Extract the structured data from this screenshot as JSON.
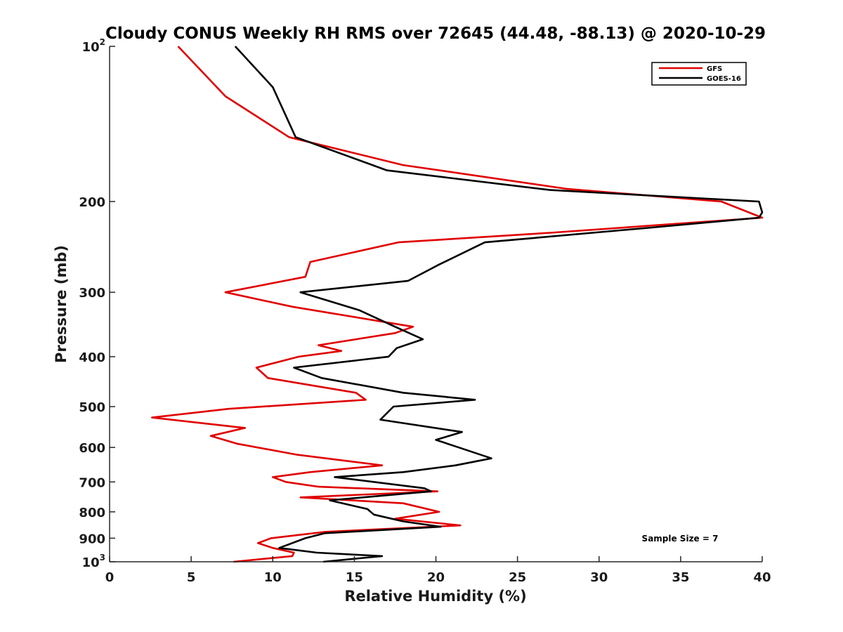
{
  "chart_data": {
    "type": "line",
    "title": "Cloudy CONUS Weekly RH RMS over 72645 (44.48, -88.13) @ 2020-10-29",
    "xlabel": "Relative Humidity (%)",
    "ylabel": "Pressure (mb)",
    "xlim": [
      0,
      40
    ],
    "ylim": [
      100,
      1000
    ],
    "y_scale": "log",
    "y_reversed": true,
    "x_ticks": [
      "0",
      "5",
      "10",
      "15",
      "20",
      "25",
      "30",
      "35",
      "40"
    ],
    "y_ticks": [
      {
        "value": 100,
        "base": "10",
        "exp": "2"
      },
      {
        "value": 200,
        "label": "200"
      },
      {
        "value": 300,
        "label": "300"
      },
      {
        "value": 400,
        "label": "400"
      },
      {
        "value": 500,
        "label": "500"
      },
      {
        "value": 600,
        "label": "600"
      },
      {
        "value": 700,
        "label": "700"
      },
      {
        "value": 800,
        "label": "800"
      },
      {
        "value": 900,
        "label": "900"
      },
      {
        "value": 1000,
        "base": "10",
        "exp": "3"
      }
    ],
    "grid": false,
    "legend_position": "top-right",
    "annotation": "Sample Size = 7",
    "series": [
      {
        "name": "GFS",
        "color": "#e00000",
        "points": [
          [
            4.2,
            100
          ],
          [
            7.1,
            125
          ],
          [
            11.0,
            150
          ],
          [
            18.0,
            170
          ],
          [
            28.0,
            189
          ],
          [
            37.5,
            200
          ],
          [
            40.0,
            215
          ],
          [
            27.0,
            230
          ],
          [
            17.7,
            240
          ],
          [
            12.3,
            262
          ],
          [
            12.0,
            280
          ],
          [
            7.1,
            300
          ],
          [
            11.2,
            320
          ],
          [
            18.6,
            350
          ],
          [
            17.5,
            360
          ],
          [
            12.8,
            380
          ],
          [
            14.2,
            390
          ],
          [
            11.6,
            400
          ],
          [
            9.0,
            420
          ],
          [
            9.7,
            440
          ],
          [
            15.1,
            470
          ],
          [
            15.7,
            485
          ],
          [
            7.3,
            505
          ],
          [
            2.6,
            525
          ],
          [
            8.3,
            550
          ],
          [
            6.2,
            570
          ],
          [
            7.8,
            590
          ],
          [
            11.5,
            620
          ],
          [
            16.7,
            650
          ],
          [
            12.3,
            670
          ],
          [
            10.0,
            685
          ],
          [
            10.8,
            700
          ],
          [
            12.8,
            715
          ],
          [
            20.1,
            730
          ],
          [
            11.7,
            750
          ],
          [
            18.0,
            770
          ],
          [
            20.2,
            800
          ],
          [
            17.5,
            825
          ],
          [
            21.5,
            850
          ],
          [
            13.2,
            875
          ],
          [
            9.9,
            900
          ],
          [
            9.1,
            920
          ],
          [
            10.0,
            940
          ],
          [
            11.3,
            960
          ],
          [
            11.2,
            975
          ],
          [
            7.6,
            1000
          ]
        ]
      },
      {
        "name": "GOES-16",
        "color": "#000000",
        "points": [
          [
            7.7,
            100
          ],
          [
            10.0,
            120
          ],
          [
            11.4,
            150
          ],
          [
            17.0,
            174
          ],
          [
            27.0,
            190
          ],
          [
            39.8,
            200
          ],
          [
            40.0,
            210
          ],
          [
            39.8,
            215
          ],
          [
            33.0,
            225
          ],
          [
            23.0,
            240
          ],
          [
            20.2,
            265
          ],
          [
            18.3,
            285
          ],
          [
            11.7,
            300
          ],
          [
            15.3,
            325
          ],
          [
            17.5,
            350
          ],
          [
            19.2,
            370
          ],
          [
            17.6,
            385
          ],
          [
            17.1,
            400
          ],
          [
            11.3,
            420
          ],
          [
            13.0,
            440
          ],
          [
            18.0,
            470
          ],
          [
            22.4,
            485
          ],
          [
            17.4,
            500
          ],
          [
            16.6,
            530
          ],
          [
            21.6,
            560
          ],
          [
            20.0,
            580
          ],
          [
            21.4,
            600
          ],
          [
            23.4,
            630
          ],
          [
            21.2,
            650
          ],
          [
            18.0,
            670
          ],
          [
            13.8,
            685
          ],
          [
            19.3,
            720
          ],
          [
            19.7,
            730
          ],
          [
            13.5,
            760
          ],
          [
            15.8,
            790
          ],
          [
            16.2,
            810
          ],
          [
            18.0,
            835
          ],
          [
            20.3,
            855
          ],
          [
            13.2,
            880
          ],
          [
            12.0,
            900
          ],
          [
            10.4,
            940
          ],
          [
            12.7,
            960
          ],
          [
            16.7,
            975
          ],
          [
            13.1,
            1000
          ]
        ]
      }
    ]
  }
}
